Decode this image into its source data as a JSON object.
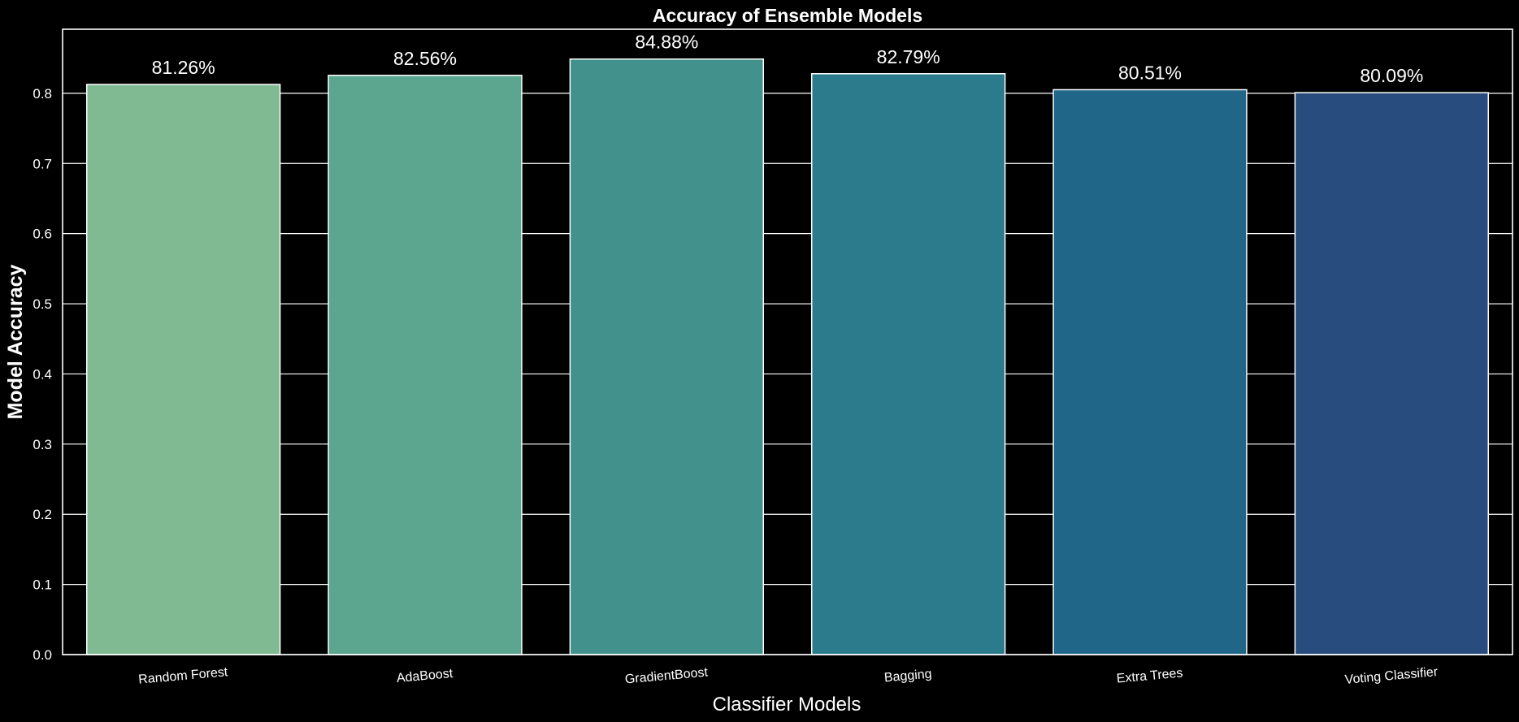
{
  "chart_data": {
    "type": "bar",
    "title": "Accuracy of Ensemble Models",
    "xlabel": "Classifier Models",
    "ylabel": "Model Accuracy",
    "categories": [
      "Random Forest",
      "AdaBoost",
      "GradientBoost",
      "Bagging",
      "Extra Trees",
      "Voting Classifier"
    ],
    "values": [
      0.8126,
      0.8256,
      0.8488,
      0.8279,
      0.8051,
      0.8009
    ],
    "data_labels": [
      "81.26%",
      "82.56%",
      "84.88%",
      "82.79%",
      "80.51%",
      "80.09%"
    ],
    "colors": [
      "#7fba92",
      "#5ca690",
      "#43918c",
      "#2c7b8d",
      "#1f6688",
      "#294c7f"
    ],
    "yticks": [
      0.0,
      0.1,
      0.2,
      0.3,
      0.4,
      0.5,
      0.6,
      0.7,
      0.8
    ],
    "ytick_labels": [
      "0.0",
      "0.1",
      "0.2",
      "0.3",
      "0.4",
      "0.5",
      "0.6",
      "0.7",
      "0.8"
    ],
    "ylim": [
      0,
      0.8913
    ],
    "grid": true,
    "background": "#000000",
    "foreground": "#ffffff"
  }
}
